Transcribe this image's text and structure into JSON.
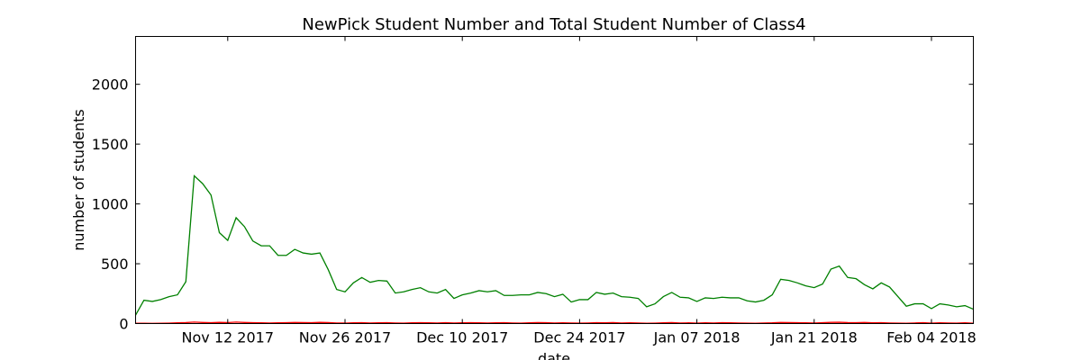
{
  "chart_data": {
    "type": "line",
    "title": "NewPick Student Number and Total Student Number of Class4",
    "xlabel": "date",
    "ylabel": "number of students",
    "ylim": [
      0,
      2400
    ],
    "xlim": [
      "2017-11-01",
      "2018-02-09"
    ],
    "y_ticks": [
      0,
      500,
      1000,
      1500,
      2000
    ],
    "x_ticks": [
      {
        "date": "2017-11-12",
        "label": "Nov 12 2017"
      },
      {
        "date": "2017-11-26",
        "label": "Nov 26 2017"
      },
      {
        "date": "2017-12-10",
        "label": "Dec 10 2017"
      },
      {
        "date": "2017-12-24",
        "label": "Dec 24 2017"
      },
      {
        "date": "2018-01-07",
        "label": "Jan 07 2018"
      },
      {
        "date": "2018-01-21",
        "label": "Jan 21 2018"
      },
      {
        "date": "2018-02-04",
        "label": "Feb 04 2018"
      }
    ],
    "grid": false,
    "legend": "none",
    "start_date": "2017-11-01",
    "interval": "daily",
    "series": [
      {
        "color": "#008000",
        "values": [
          70,
          195,
          185,
          200,
          225,
          240,
          350,
          1235,
          1170,
          1075,
          760,
          695,
          885,
          810,
          690,
          650,
          650,
          570,
          570,
          620,
          590,
          580,
          590,
          450,
          285,
          265,
          340,
          385,
          345,
          360,
          355,
          255,
          265,
          285,
          300,
          265,
          255,
          285,
          210,
          240,
          255,
          275,
          265,
          275,
          235,
          235,
          240,
          240,
          260,
          250,
          225,
          245,
          180,
          200,
          200,
          260,
          245,
          255,
          225,
          220,
          210,
          140,
          165,
          225,
          260,
          220,
          215,
          185,
          215,
          210,
          220,
          215,
          215,
          190,
          180,
          195,
          240,
          370,
          360,
          340,
          315,
          300,
          330,
          455,
          480,
          385,
          375,
          325,
          290,
          340,
          305,
          225,
          145,
          165,
          165,
          125,
          165,
          155,
          140,
          150,
          120
        ],
        "x_labels_note": ""
      },
      {
        "color": "#ff0000",
        "values": [
          3,
          3,
          2,
          3,
          4,
          6,
          8,
          12,
          9,
          7,
          10,
          8,
          12,
          9,
          7,
          6,
          5,
          6,
          7,
          9,
          8,
          7,
          10,
          8,
          5,
          4,
          6,
          7,
          5,
          6,
          7,
          5,
          4,
          6,
          7,
          6,
          5,
          7,
          5,
          6,
          7,
          6,
          5,
          6,
          7,
          5,
          4,
          6,
          8,
          7,
          5,
          6,
          5,
          4,
          5,
          7,
          6,
          8,
          5,
          6,
          5,
          3,
          4,
          6,
          8,
          5,
          6,
          4,
          6,
          5,
          7,
          6,
          5,
          4,
          3,
          5,
          6,
          9,
          8,
          7,
          6,
          5,
          7,
          10,
          11,
          8,
          7,
          9,
          6,
          7,
          5,
          4,
          3,
          5,
          7,
          4,
          6,
          5,
          4,
          6,
          3
        ]
      }
    ]
  }
}
